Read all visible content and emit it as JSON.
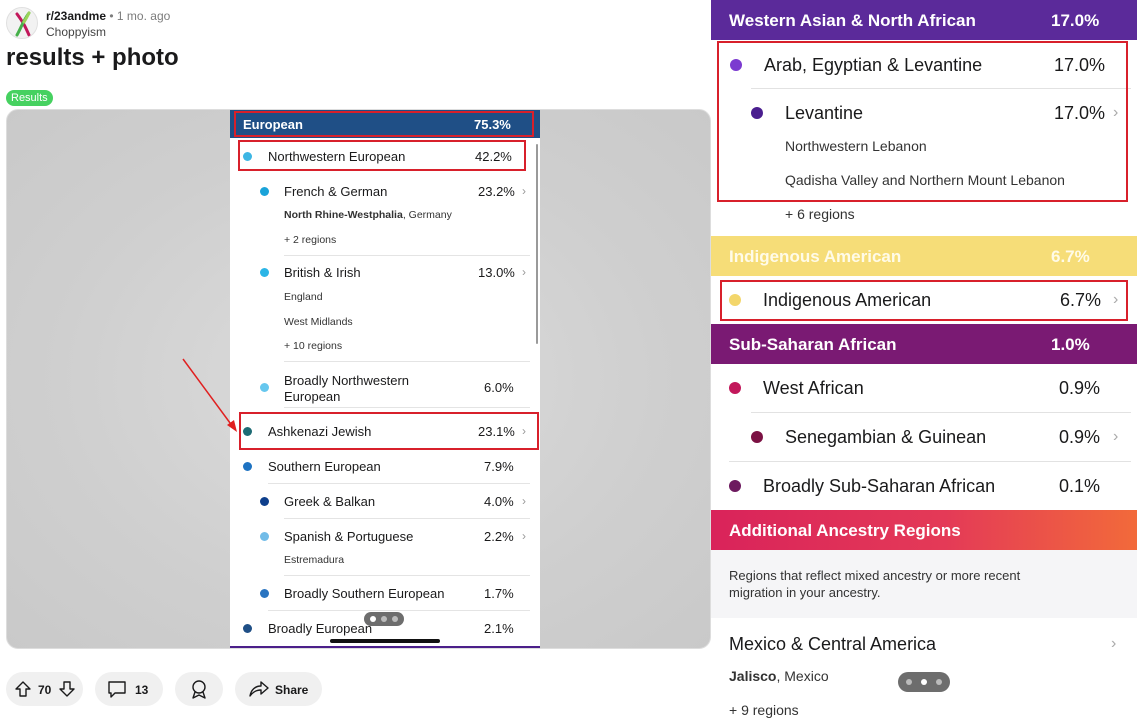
{
  "post": {
    "subreddit": "r/23andme",
    "separator": "•",
    "time": "1 mo. ago",
    "author": "Choppyism",
    "title": "results + photo",
    "flair": "Results"
  },
  "left_screenshot": {
    "header": {
      "label": "European",
      "value": "75.3%"
    },
    "rows": [
      {
        "label": "Northwestern European",
        "value": "42.2%",
        "color": "#3db6e4"
      },
      {
        "label": "French & German",
        "value": "23.2%",
        "color": "#1aa3d9",
        "sub1_bold": "North Rhine-Westphalia",
        "sub1_rest": ", Germany",
        "sub2": "+ 2 regions"
      },
      {
        "label": "British & Irish",
        "value": "13.0%",
        "color": "#2bb5e6",
        "sub1": "England",
        "sub2": "West Midlands",
        "sub3": "+ 10 regions"
      },
      {
        "label": "Broadly Northwestern",
        "label2": "European",
        "value": "6.0%",
        "color": "#66c7ee"
      },
      {
        "label": "Ashkenazi Jewish",
        "value": "23.1%",
        "color": "#1d6b74"
      },
      {
        "label": "Southern European",
        "value": "7.9%",
        "color": "#1e73c2"
      },
      {
        "label": "Greek & Balkan",
        "value": "4.0%",
        "color": "#0e3f8c"
      },
      {
        "label": "Spanish & Portuguese",
        "value": "2.2%",
        "color": "#72bce8",
        "sub1": "Estremadura"
      },
      {
        "label": "Broadly Southern European",
        "value": "1.7%",
        "color": "#2a74c0"
      },
      {
        "label": "Broadly European",
        "value": "2.1%",
        "color": "#1f4f86"
      }
    ]
  },
  "right_screenshot": {
    "wana": {
      "label": "Western Asian & North African",
      "value": "17.0%",
      "color": "#5b2a9a"
    },
    "arab": {
      "label": "Arab, Egyptian & Levantine",
      "value": "17.0%",
      "color": "#7b3ad0"
    },
    "levantine": {
      "label": "Levantine",
      "value": "17.0%",
      "color": "#4a1e8f",
      "sub1": "Northwestern Lebanon",
      "sub2": "Qadisha Valley and Northern Mount Lebanon",
      "sub3": "+ 6 regions"
    },
    "indig_band": {
      "label": "Indigenous American",
      "value": "6.7%",
      "color": "#f6dd78"
    },
    "indig": {
      "label": "Indigenous American",
      "value": "6.7%",
      "color": "#f3d66b"
    },
    "ssa": {
      "label": "Sub-Saharan African",
      "value": "1.0%",
      "color": "#7a1a73"
    },
    "west_african": {
      "label": "West African",
      "value": "0.9%",
      "color": "#c2185b"
    },
    "senegambian": {
      "label": "Senegambian & Guinean",
      "value": "0.9%",
      "color": "#7b1143"
    },
    "broadly_ssa": {
      "label": "Broadly Sub-Saharan African",
      "value": "0.1%",
      "color": "#6d1a5f"
    },
    "additional": {
      "label": "Additional Ancestry Regions",
      "desc1": "Regions that reflect mixed ancestry or more recent",
      "desc2": "migration in your ancestry."
    },
    "mexico": {
      "label": "Mexico & Central America",
      "sub_bold": "Jalisco",
      "sub_rest": ", Mexico",
      "sub2": "+ 9 regions"
    }
  },
  "actions": {
    "votes": "70",
    "comments": "13",
    "share": "Share"
  }
}
